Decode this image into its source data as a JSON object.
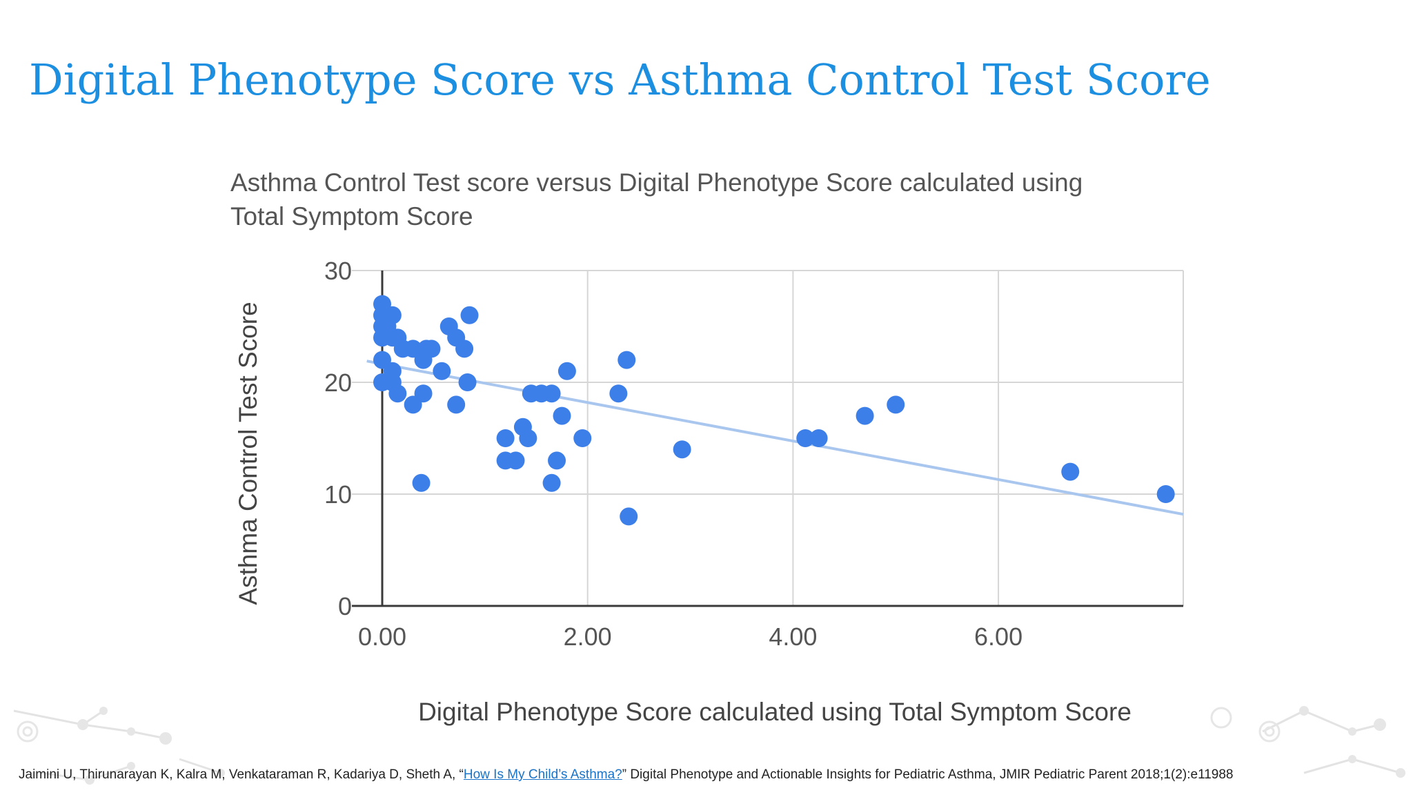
{
  "slide": {
    "title": "Digital Phenotype Score vs Asthma Control Test Score"
  },
  "citation": {
    "prefix": "Jaimini U, Thirunarayan K, Kalra M, Venkataraman R, Kadariya D, Sheth A, “",
    "link_text": "How Is My Child’s Asthma?",
    "suffix": "” Digital Phenotype and Actionable Insights for Pediatric Asthma, JMIR Pediatric Parent 2018;1(2):e11988"
  },
  "colors": {
    "title": "#1d8fe0",
    "points": "#3d7fe8",
    "trendline": "#a9c6ee",
    "grid": "#d6d6d6",
    "axis": "#3a3a3a",
    "chart_text": "#555555"
  },
  "chart_data": {
    "type": "scatter",
    "title": "Asthma Control Test score versus Digital Phenotype Score calculated using Total Symptom Score",
    "title_lines": [
      "Asthma Control Test score versus Digital Phenotype Score calculated using",
      "Total Symptom Score"
    ],
    "xlabel": "Digital Phenotype Score calculated using Total Symptom Score",
    "ylabel": "Asthma Control Test Score",
    "xlim": [
      0,
      7.8
    ],
    "ylim": [
      0,
      30
    ],
    "x_ticks": [
      0,
      2,
      4,
      6
    ],
    "x_tick_labels": [
      "0.00",
      "2.00",
      "4.00",
      "6.00"
    ],
    "y_ticks": [
      0,
      10,
      20,
      30
    ],
    "y_tick_labels": [
      "0",
      "10",
      "20",
      "30"
    ],
    "grid": true,
    "legend": "none",
    "trendline": {
      "x": [
        -0.15,
        7.8
      ],
      "y": [
        21.9,
        8.2
      ]
    },
    "series": [
      {
        "points": [
          {
            "x": 0.0,
            "y": 27
          },
          {
            "x": 0.0,
            "y": 26
          },
          {
            "x": 0.0,
            "y": 25
          },
          {
            "x": 0.0,
            "y": 24
          },
          {
            "x": 0.0,
            "y": 22
          },
          {
            "x": 0.0,
            "y": 20
          },
          {
            "x": 0.05,
            "y": 25
          },
          {
            "x": 0.1,
            "y": 26
          },
          {
            "x": 0.1,
            "y": 24
          },
          {
            "x": 0.1,
            "y": 21
          },
          {
            "x": 0.1,
            "y": 20
          },
          {
            "x": 0.15,
            "y": 19
          },
          {
            "x": 0.15,
            "y": 24
          },
          {
            "x": 0.2,
            "y": 23
          },
          {
            "x": 0.3,
            "y": 23
          },
          {
            "x": 0.3,
            "y": 18
          },
          {
            "x": 0.38,
            "y": 11
          },
          {
            "x": 0.4,
            "y": 22
          },
          {
            "x": 0.4,
            "y": 19
          },
          {
            "x": 0.43,
            "y": 23
          },
          {
            "x": 0.48,
            "y": 23
          },
          {
            "x": 0.58,
            "y": 21
          },
          {
            "x": 0.65,
            "y": 25
          },
          {
            "x": 0.72,
            "y": 24
          },
          {
            "x": 0.72,
            "y": 18
          },
          {
            "x": 0.8,
            "y": 23
          },
          {
            "x": 0.83,
            "y": 20
          },
          {
            "x": 0.85,
            "y": 26
          },
          {
            "x": 1.2,
            "y": 15
          },
          {
            "x": 1.2,
            "y": 13
          },
          {
            "x": 1.3,
            "y": 13
          },
          {
            "x": 1.37,
            "y": 16
          },
          {
            "x": 1.42,
            "y": 15
          },
          {
            "x": 1.45,
            "y": 19
          },
          {
            "x": 1.55,
            "y": 19
          },
          {
            "x": 1.65,
            "y": 19
          },
          {
            "x": 1.65,
            "y": 11
          },
          {
            "x": 1.7,
            "y": 13
          },
          {
            "x": 1.75,
            "y": 17
          },
          {
            "x": 1.8,
            "y": 21
          },
          {
            "x": 1.95,
            "y": 15
          },
          {
            "x": 2.3,
            "y": 19
          },
          {
            "x": 2.38,
            "y": 22
          },
          {
            "x": 2.4,
            "y": 8
          },
          {
            "x": 2.92,
            "y": 14
          },
          {
            "x": 4.12,
            "y": 15
          },
          {
            "x": 4.25,
            "y": 15
          },
          {
            "x": 4.7,
            "y": 17
          },
          {
            "x": 5.0,
            "y": 18
          },
          {
            "x": 6.7,
            "y": 12
          },
          {
            "x": 7.63,
            "y": 10
          }
        ]
      }
    ]
  }
}
